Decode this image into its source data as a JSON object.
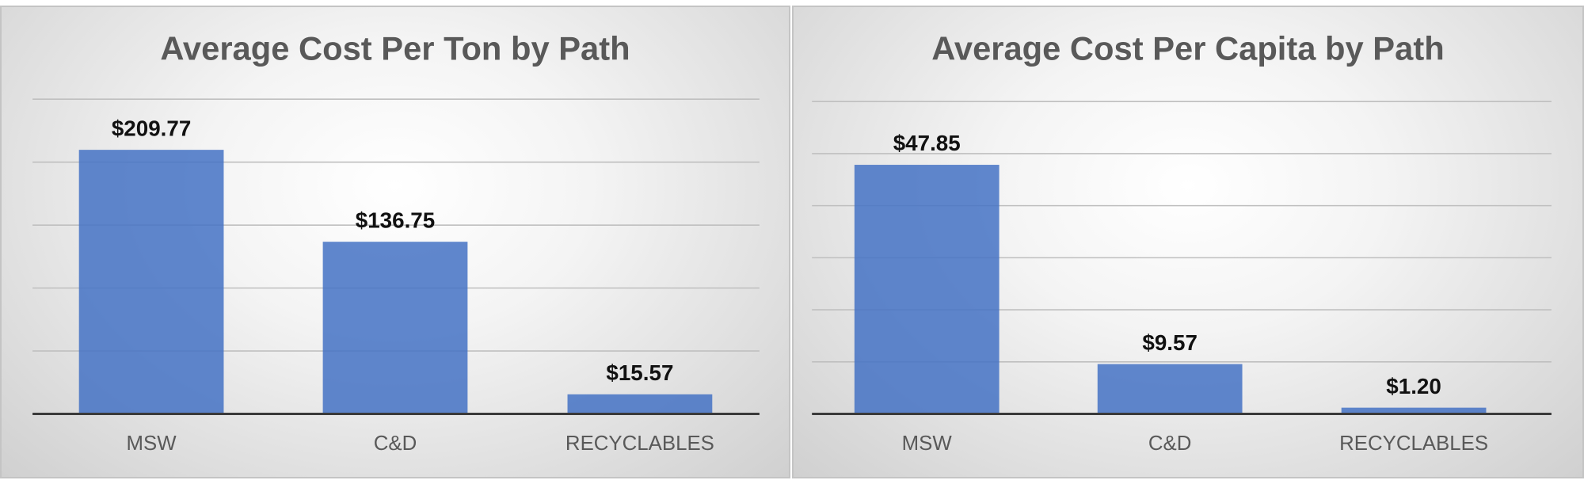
{
  "chart_data": [
    {
      "type": "bar",
      "title": "Average Cost Per Ton by Path",
      "categories": [
        "MSW",
        "C&D",
        "RECYCLABLES"
      ],
      "values": [
        209.77,
        136.75,
        15.57
      ],
      "data_labels": [
        "$209.77",
        "$136.75",
        "$15.57"
      ],
      "xlabel": "",
      "ylabel": "",
      "ylim": [
        0,
        250
      ],
      "grid": true,
      "legend": "none",
      "bar_color": "#4472c4"
    },
    {
      "type": "bar",
      "title": "Average Cost Per Capita by Path",
      "categories": [
        "MSW",
        "C&D",
        "RECYCLABLES"
      ],
      "values": [
        47.85,
        9.57,
        1.2
      ],
      "data_labels": [
        "$47.85",
        "$9.57",
        "$1.20"
      ],
      "xlabel": "",
      "ylabel": "",
      "ylim": [
        0,
        60
      ],
      "grid": true,
      "legend": "none",
      "bar_color": "#4472c4"
    }
  ]
}
